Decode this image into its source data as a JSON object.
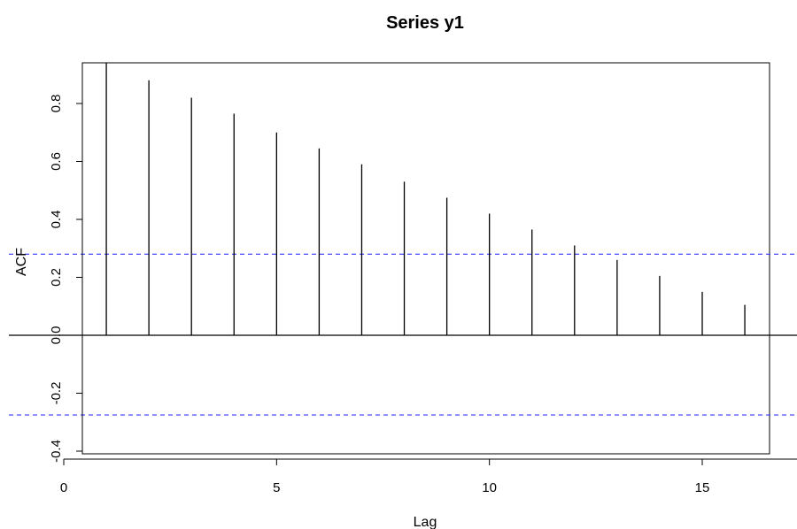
{
  "chart_data": {
    "type": "bar",
    "title": "Series  y1",
    "xlabel": "Lag",
    "ylabel": "ACF",
    "x": [
      1,
      2,
      3,
      4,
      5,
      6,
      7,
      8,
      9,
      10,
      11,
      12,
      13,
      14,
      15,
      16
    ],
    "values": [
      0.94,
      0.88,
      0.82,
      0.765,
      0.7,
      0.645,
      0.59,
      0.53,
      0.475,
      0.42,
      0.365,
      0.31,
      0.26,
      0.205,
      0.15,
      0.105
    ],
    "xlim": [
      0,
      17
    ],
    "ylim": [
      -0.42,
      0.94
    ],
    "x_ticks": [
      "0",
      "5",
      "10",
      "15"
    ],
    "x_tick_values": [
      0,
      5,
      10,
      15
    ],
    "y_ticks": [
      "-0.4",
      "-0.2",
      "0.0",
      "0.2",
      "0.4",
      "0.6",
      "0.8"
    ],
    "y_tick_values": [
      -0.4,
      -0.2,
      0.0,
      0.2,
      0.4,
      0.6,
      0.8
    ],
    "confidence_bounds": [
      0.28,
      -0.275
    ],
    "zero_line": 0,
    "grid": false,
    "colors": {
      "bars": "#000000",
      "confidence": "#3333ff",
      "axis": "#000000"
    }
  }
}
